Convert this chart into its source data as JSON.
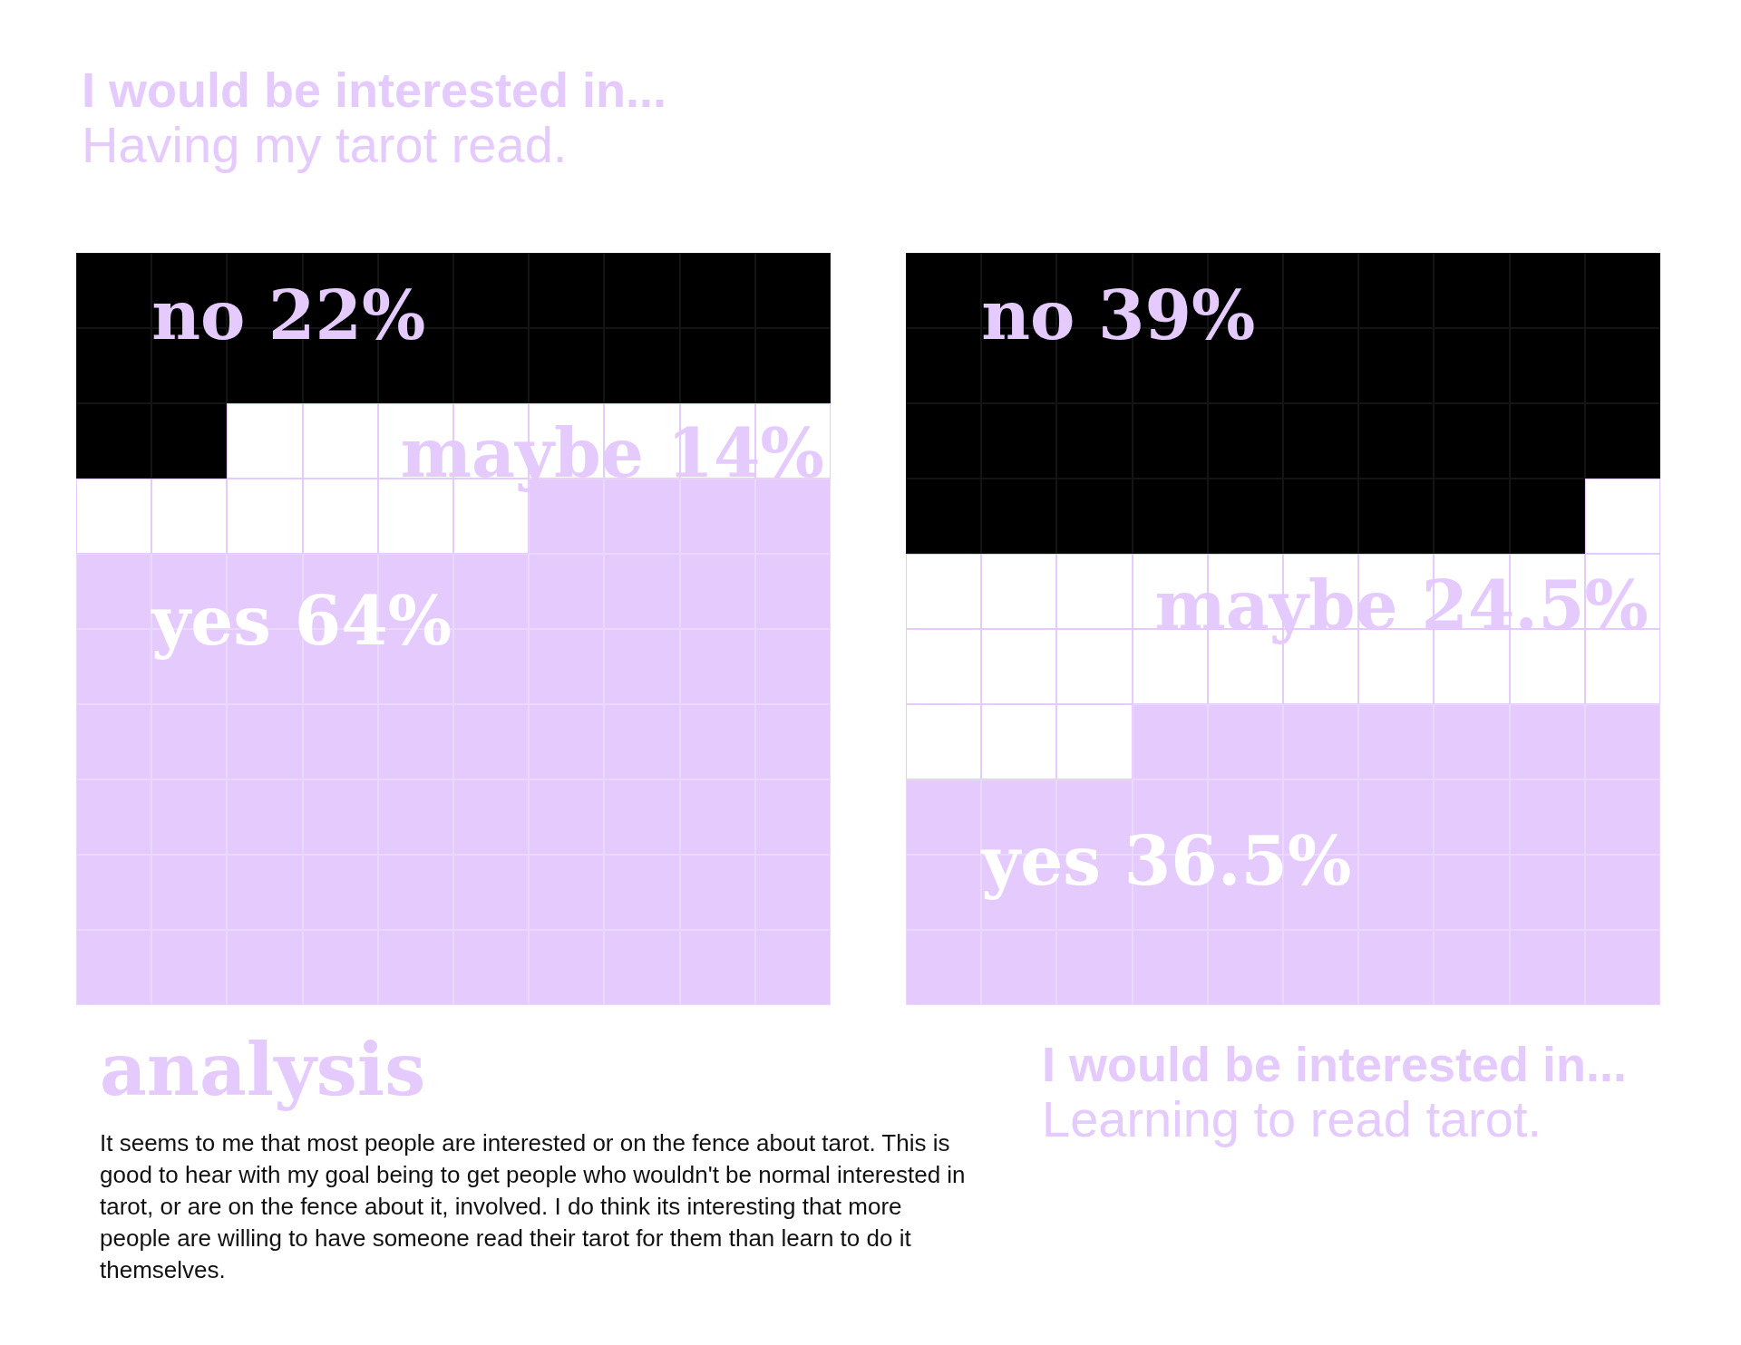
{
  "chart_data": [
    {
      "type": "other",
      "title": "I would be interested in...",
      "subtitle": "Having my tarot read.",
      "categories": [
        "no",
        "maybe",
        "yes"
      ],
      "values": [
        22,
        14,
        64
      ],
      "value_labels": [
        "22%",
        "14%",
        "64%"
      ],
      "colors": [
        "#000000",
        "#ffffff",
        "#e5cbfd"
      ]
    },
    {
      "type": "other",
      "title": "I would be interested in...",
      "subtitle": "Learning to read tarot.",
      "categories": [
        "no",
        "maybe",
        "yes"
      ],
      "values": [
        39,
        24.5,
        36.5
      ],
      "value_labels": [
        "39%",
        "24.5%",
        "36.5%"
      ],
      "colors": [
        "#000000",
        "#ffffff",
        "#e5cbfd"
      ]
    },
    {
      "type": "other",
      "title": "analysis",
      "annotations": [
        "It seems to me that most people are interested or on the fence about tarot. This is good to hear with my goal being to get people who wouldn't be normal interested in tarot, or are on the fence about it, involved. I do think its interesting that more people are willing to have someone read their tarot for them than learn to do it themselves."
      ]
    }
  ]
}
